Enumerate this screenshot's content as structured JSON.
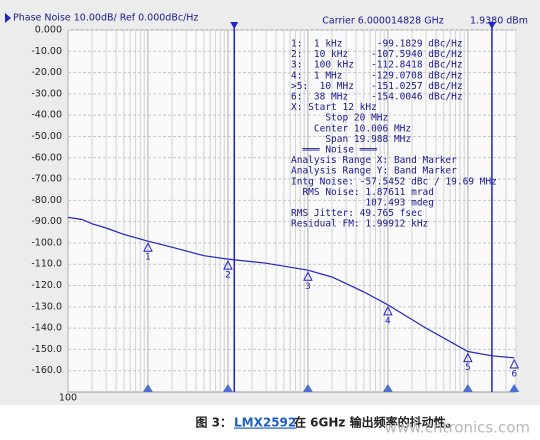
{
  "chart_data": {
    "type": "line",
    "title": "Phase Noise 10.00dB/ Ref 0.000dBc/Hz",
    "carrier": "Carrier 6.000014828 GHz",
    "power": "1.9380 dBm",
    "x_log": true,
    "grid": true,
    "xlim": [
      100,
      40000000
    ],
    "xticks": [
      100
    ],
    "ylim": [
      -170,
      0
    ],
    "yticks": [
      {
        "value": 0,
        "label": "0.000"
      },
      {
        "value": -10,
        "label": "-10.00"
      },
      {
        "value": -20,
        "label": "-20.00"
      },
      {
        "value": -30,
        "label": "-30.00"
      },
      {
        "value": -40,
        "label": "-40.00"
      },
      {
        "value": -50,
        "label": "-50.00"
      },
      {
        "value": -60,
        "label": "-60.00"
      },
      {
        "value": -70,
        "label": "-70.00"
      },
      {
        "value": -80,
        "label": "-80.00"
      },
      {
        "value": -90,
        "label": "-90.00"
      },
      {
        "value": -100,
        "label": "-100.0"
      },
      {
        "value": -110,
        "label": "-110.0"
      },
      {
        "value": -120,
        "label": "-120.0"
      },
      {
        "value": -130,
        "label": "-130.0"
      },
      {
        "value": -140,
        "label": "-140.0"
      },
      {
        "value": -150,
        "label": "-150.0"
      },
      {
        "value": -160,
        "label": "-160.0"
      }
    ],
    "x": [
      100,
      150,
      200,
      300,
      500,
      1000,
      2000,
      5000,
      10000,
      30000,
      100000,
      200000,
      500000,
      1000000,
      3000000,
      10000000,
      20000000,
      38000000
    ],
    "series": [
      {
        "color": "#2323c8",
        "values": [
          -88,
          -89,
          -91,
          -93,
          -96,
          -99.2,
          -102,
          -106,
          -107.6,
          -109.5,
          -112.8,
          -116,
          -123,
          -129.1,
          -140,
          -151,
          -153,
          -154
        ]
      }
    ],
    "markers": [
      {
        "label": "1",
        "x": 1000,
        "y": -99.1829
      },
      {
        "label": "2",
        "x": 10000,
        "y": -107.594
      },
      {
        "label": "3",
        "x": 100000,
        "y": -112.8418
      },
      {
        "label": "4",
        "x": 1000000,
        "y": -129.0708
      },
      {
        "label": "5",
        "x": 10000000,
        "y": -151.0257
      },
      {
        "label": "6",
        "x": 38000000,
        "y": -154.0046
      }
    ],
    "range": [
      12000,
      20000000
    ],
    "readout": [
      "1:  1 kHz      -99.1829 dBc/Hz",
      "2:  10 kHz    -107.5940 dBc/Hz",
      "3:  100 kHz   -112.8418 dBc/Hz",
      "4:  1 MHz     -129.0708 dBc/Hz",
      ">5:  10 MHz   -151.0257 dBc/Hz",
      "6:  38 MHz    -154.0046 dBc/Hz",
      "X: Start 12 kHz",
      "      Stop 20 MHz",
      "    Center 10.006 MHz",
      "      Span 19.988 MHz",
      "  ═══ Noise ═══",
      "Analysis Range X: Band Marker",
      "Analysis Range Y: Band Marker",
      "Intg Noise: -57.5452 dBc / 19.69 MHz",
      "  RMS Noise: 1.87611 mrad",
      "             107.493 mdeg",
      "RMS Jitter: 49.765 fsec",
      "Residual FM: 1.99912 kHz"
    ]
  },
  "caption": {
    "prefix": "图 3：",
    "link": "LMX2592",
    "suffix": " 在 6GHz 输出频率的抖动性。"
  },
  "watermark": "www.cntronics.com"
}
